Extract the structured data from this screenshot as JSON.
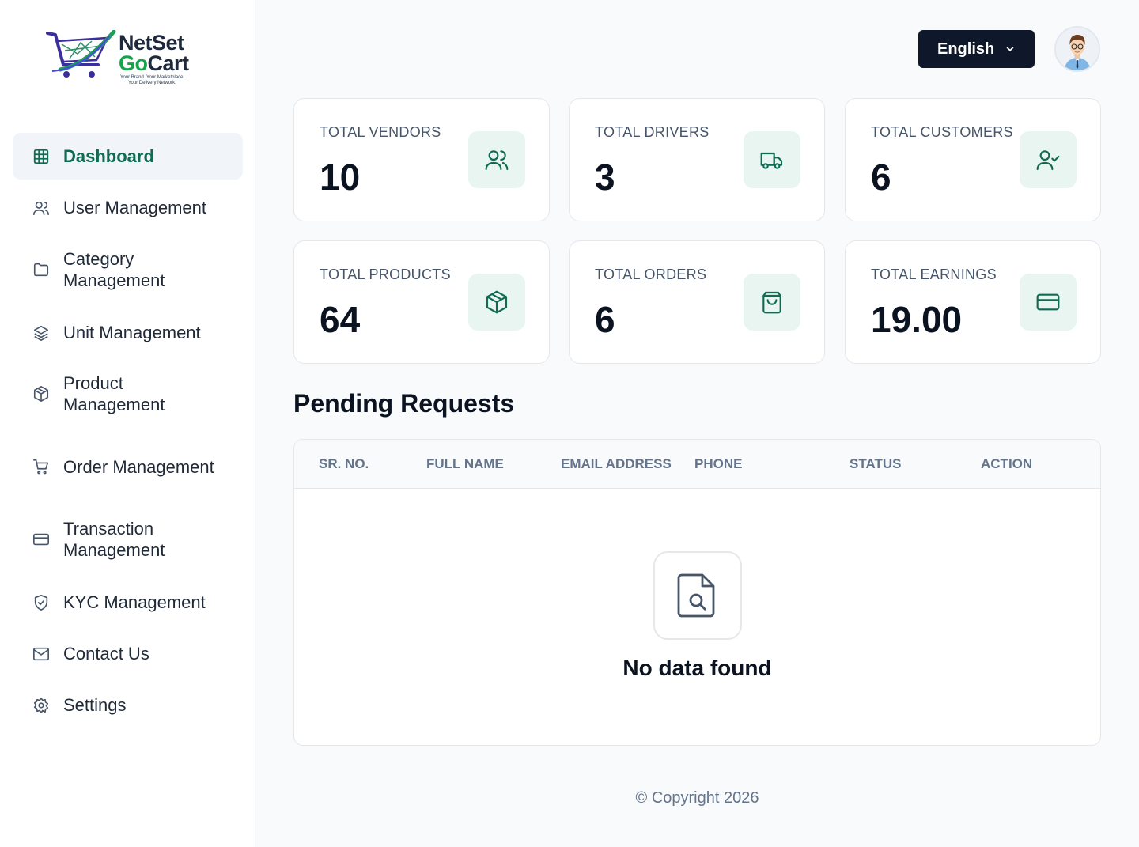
{
  "sidebar": {
    "logo": {
      "line1": "NetSet",
      "line2_prefix": "Go",
      "line2_suffix": "Cart",
      "tagline1": "Your Brand. Your Marketplace.",
      "tagline2": "Your Delivery Network."
    },
    "items": [
      {
        "label": "Dashboard",
        "icon": "grid-icon",
        "active": true
      },
      {
        "label": "User Management",
        "icon": "users-icon"
      },
      {
        "label": "Category Management",
        "icon": "folder-icon"
      },
      {
        "label": "Unit Management",
        "icon": "layers-icon"
      },
      {
        "label": "Product Management",
        "icon": "box-icon"
      },
      {
        "label": "Order Management",
        "icon": "cart-icon"
      },
      {
        "label": "Transaction Management",
        "icon": "credit-card-icon"
      },
      {
        "label": "KYC Management",
        "icon": "shield-check-icon"
      },
      {
        "label": "Contact Us",
        "icon": "mail-icon"
      },
      {
        "label": "Settings",
        "icon": "gear-icon"
      }
    ]
  },
  "header": {
    "language": "English"
  },
  "stats": [
    {
      "label": "TOTAL VENDORS",
      "value": "10",
      "icon": "users-icon"
    },
    {
      "label": "TOTAL DRIVERS",
      "value": "3",
      "icon": "truck-icon"
    },
    {
      "label": "TOTAL CUSTOMERS",
      "value": "6",
      "icon": "user-check-icon"
    },
    {
      "label": "TOTAL PRODUCTS",
      "value": "64",
      "icon": "box-icon"
    },
    {
      "label": "TOTAL ORDERS",
      "value": "6",
      "icon": "shopping-bag-icon"
    },
    {
      "label": "TOTAL EARNINGS",
      "value": "19.00",
      "icon": "credit-card-icon"
    }
  ],
  "pending": {
    "title": "Pending Requests",
    "columns": [
      "SR. NO.",
      "FULL NAME",
      "EMAIL ADDRESS",
      "PHONE",
      "STATUS",
      "ACTION"
    ],
    "rows": [],
    "empty_text": "No data found"
  },
  "footer": {
    "copyright": "© Copyright 2026"
  },
  "colors": {
    "accent": "#0f6b52",
    "icon_bg": "#e8f5f0",
    "dark_button": "#0f172a"
  }
}
